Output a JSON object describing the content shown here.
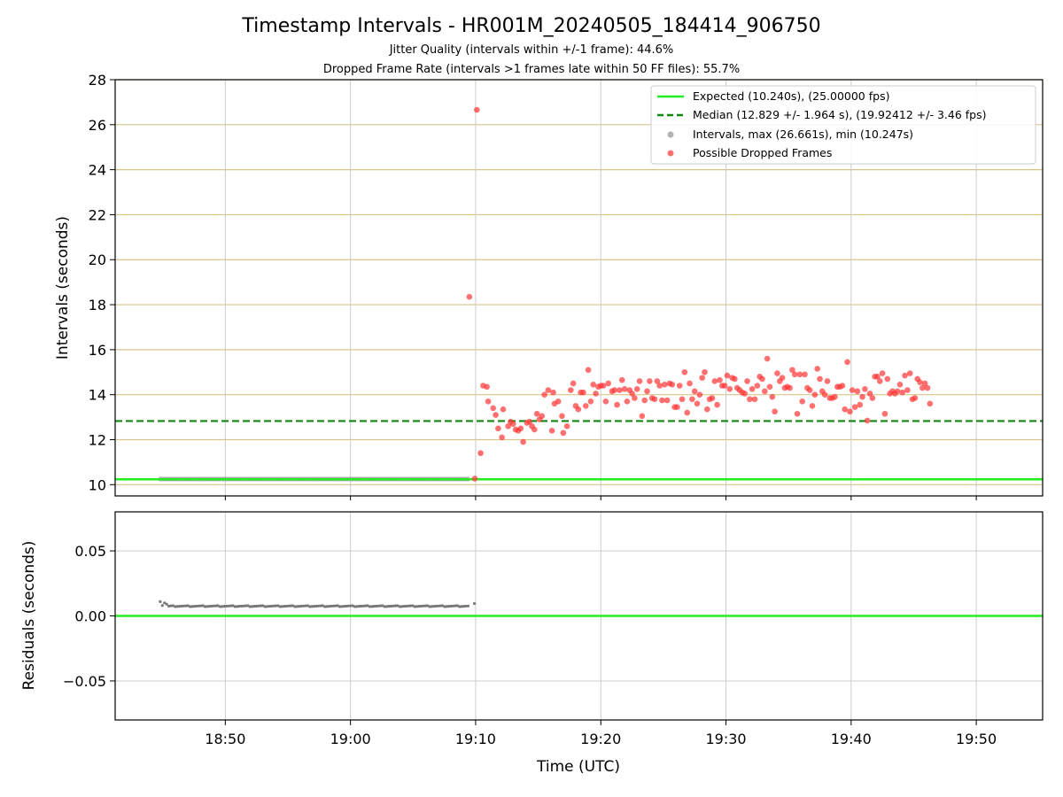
{
  "figure": {
    "title": "Timestamp Intervals - HR001M_20240505_184414_906750",
    "subtitle1": "Jitter Quality (intervals within +/-1 frame): 44.6%",
    "subtitle2": "Dropped Frame Rate (intervals >1 frames late within 50 FF files): 55.7%"
  },
  "chart_data": [
    {
      "type": "scatter",
      "ylabel": "Intervals (seconds)",
      "xlim": [
        "18:41:12",
        "19:55:18"
      ],
      "ylim": [
        9.5,
        28
      ],
      "yticks": [
        10,
        12,
        14,
        16,
        18,
        20,
        22,
        24,
        26,
        28
      ],
      "grid": true,
      "legend_position": "top-right",
      "colors": {
        "expected": "#22ee22",
        "median": "#118811",
        "intervals": "#999999",
        "dropped": "#ff3333",
        "hgrid": "#d8c48a",
        "vgrid": "#cccccc"
      },
      "lines": {
        "expected": {
          "label": "Expected (10.240s), (25.00000 fps)",
          "y": 10.24
        },
        "median": {
          "label": "Median (12.829 +/- 1.964 s), (19.92412 +/- 3.46 fps)",
          "y": 12.829
        }
      },
      "series": [
        {
          "name": "Intervals, max (26.661s), min (10.247s)",
          "y_value": 10.25,
          "x_start": "18:44:48",
          "x_end": "19:09:24",
          "step_seconds": 10.25
        },
        {
          "name": "Possible Dropped Frames",
          "points": [
            [
              "19:09:30",
              18.35
            ],
            [
              "19:09:56",
              10.27
            ],
            [
              "19:10:06",
              26.66
            ],
            [
              "19:10:24",
              11.4
            ],
            [
              "19:10:36",
              14.4
            ],
            [
              "19:10:54",
              14.35
            ],
            [
              "19:11:00",
              13.7
            ],
            [
              "19:11:24",
              13.4
            ],
            [
              "19:11:36",
              13.1
            ],
            [
              "19:11:48",
              12.5
            ],
            [
              "19:12:06",
              12.1
            ],
            [
              "19:12:12",
              13.35
            ],
            [
              "19:12:36",
              12.6
            ],
            [
              "19:12:48",
              12.8
            ],
            [
              "19:13:00",
              12.7
            ],
            [
              "19:13:12",
              12.45
            ],
            [
              "19:13:24",
              12.4
            ],
            [
              "19:13:36",
              12.5
            ],
            [
              "19:13:48",
              11.9
            ],
            [
              "19:14:06",
              12.75
            ],
            [
              "19:14:18",
              12.8
            ],
            [
              "19:14:30",
              12.6
            ],
            [
              "19:14:42",
              12.45
            ],
            [
              "19:14:54",
              13.15
            ],
            [
              "19:15:06",
              12.9
            ],
            [
              "19:15:18",
              13.05
            ],
            [
              "19:15:30",
              14.0
            ],
            [
              "19:15:48",
              14.2
            ],
            [
              "19:16:06",
              12.4
            ],
            [
              "19:16:12",
              14.1
            ],
            [
              "19:16:18",
              13.6
            ],
            [
              "19:16:36",
              13.7
            ],
            [
              "19:16:54",
              13.05
            ],
            [
              "19:17:00",
              12.3
            ],
            [
              "19:17:18",
              12.6
            ],
            [
              "19:17:36",
              14.2
            ],
            [
              "19:17:48",
              14.5
            ],
            [
              "19:18:00",
              13.5
            ],
            [
              "19:18:12",
              13.35
            ],
            [
              "19:18:24",
              14.1
            ],
            [
              "19:18:36",
              14.1
            ],
            [
              "19:18:48",
              13.5
            ],
            [
              "19:19:00",
              15.1
            ],
            [
              "19:19:12",
              13.7
            ],
            [
              "19:19:24",
              14.45
            ],
            [
              "19:19:36",
              14.05
            ],
            [
              "19:19:48",
              14.35
            ],
            [
              "19:20:00",
              14.4
            ],
            [
              "19:20:12",
              14.4
            ],
            [
              "19:20:24",
              13.7
            ],
            [
              "19:20:36",
              14.5
            ],
            [
              "19:20:54",
              14.15
            ],
            [
              "19:21:06",
              14.2
            ],
            [
              "19:21:18",
              13.55
            ],
            [
              "19:21:30",
              14.2
            ],
            [
              "19:21:42",
              14.65
            ],
            [
              "19:21:54",
              14.25
            ],
            [
              "19:22:06",
              13.7
            ],
            [
              "19:22:18",
              14.2
            ],
            [
              "19:22:30",
              14.05
            ],
            [
              "19:22:42",
              13.85
            ],
            [
              "19:22:54",
              14.25
            ],
            [
              "19:23:06",
              14.6
            ],
            [
              "19:23:18",
              13.05
            ],
            [
              "19:23:30",
              13.75
            ],
            [
              "19:23:42",
              14.15
            ],
            [
              "19:23:54",
              14.6
            ],
            [
              "19:24:06",
              13.85
            ],
            [
              "19:24:18",
              13.8
            ],
            [
              "19:24:30",
              14.6
            ],
            [
              "19:24:42",
              14.4
            ],
            [
              "19:24:54",
              13.75
            ],
            [
              "19:25:06",
              14.45
            ],
            [
              "19:25:18",
              13.75
            ],
            [
              "19:25:30",
              14.5
            ],
            [
              "19:25:42",
              14.45
            ],
            [
              "19:25:54",
              13.45
            ],
            [
              "19:26:06",
              13.45
            ],
            [
              "19:26:18",
              14.4
            ],
            [
              "19:26:30",
              13.8
            ],
            [
              "19:26:42",
              15.0
            ],
            [
              "19:26:54",
              13.2
            ],
            [
              "19:27:06",
              14.5
            ],
            [
              "19:27:18",
              13.8
            ],
            [
              "19:27:30",
              14.15
            ],
            [
              "19:27:42",
              13.6
            ],
            [
              "19:27:54",
              14.0
            ],
            [
              "19:28:06",
              14.75
            ],
            [
              "19:28:18",
              15.0
            ],
            [
              "19:28:30",
              13.35
            ],
            [
              "19:28:42",
              13.8
            ],
            [
              "19:28:54",
              13.85
            ],
            [
              "19:29:06",
              14.6
            ],
            [
              "19:29:18",
              13.55
            ],
            [
              "19:29:30",
              14.65
            ],
            [
              "19:29:42",
              14.4
            ],
            [
              "19:29:54",
              14.4
            ],
            [
              "19:30:06",
              14.85
            ],
            [
              "19:30:18",
              14.25
            ],
            [
              "19:30:30",
              14.75
            ],
            [
              "19:30:42",
              14.7
            ],
            [
              "19:30:54",
              14.3
            ],
            [
              "19:31:06",
              14.2
            ],
            [
              "19:31:18",
              14.1
            ],
            [
              "19:31:30",
              14.05
            ],
            [
              "19:31:42",
              14.6
            ],
            [
              "19:31:54",
              13.8
            ],
            [
              "19:32:06",
              14.25
            ],
            [
              "19:32:18",
              13.8
            ],
            [
              "19:32:30",
              14.4
            ],
            [
              "19:32:42",
              14.8
            ],
            [
              "19:32:54",
              14.7
            ],
            [
              "19:33:06",
              14.15
            ],
            [
              "19:33:18",
              15.6
            ],
            [
              "19:33:30",
              14.35
            ],
            [
              "19:33:42",
              13.9
            ],
            [
              "19:33:54",
              13.25
            ],
            [
              "19:34:06",
              14.95
            ],
            [
              "19:34:18",
              14.6
            ],
            [
              "19:34:30",
              14.75
            ],
            [
              "19:34:42",
              14.3
            ],
            [
              "19:34:54",
              14.35
            ],
            [
              "19:35:06",
              14.3
            ],
            [
              "19:35:18",
              15.1
            ],
            [
              "19:35:30",
              14.9
            ],
            [
              "19:35:42",
              13.15
            ],
            [
              "19:35:54",
              14.9
            ],
            [
              "19:36:06",
              13.7
            ],
            [
              "19:36:18",
              14.9
            ],
            [
              "19:36:30",
              14.3
            ],
            [
              "19:36:42",
              14.2
            ],
            [
              "19:36:54",
              13.5
            ],
            [
              "19:37:06",
              14.0
            ],
            [
              "19:37:18",
              15.15
            ],
            [
              "19:37:30",
              14.7
            ],
            [
              "19:37:42",
              14.15
            ],
            [
              "19:37:54",
              14.0
            ],
            [
              "19:38:06",
              14.6
            ],
            [
              "19:38:18",
              13.85
            ],
            [
              "19:38:30",
              13.85
            ],
            [
              "19:38:42",
              13.9
            ],
            [
              "19:38:54",
              14.35
            ],
            [
              "19:39:06",
              14.35
            ],
            [
              "19:39:18",
              14.4
            ],
            [
              "19:39:30",
              13.35
            ],
            [
              "19:39:42",
              15.45
            ],
            [
              "19:39:54",
              13.25
            ],
            [
              "19:40:06",
              14.2
            ],
            [
              "19:40:18",
              13.45
            ],
            [
              "19:40:30",
              14.15
            ],
            [
              "19:40:42",
              13.55
            ],
            [
              "19:40:54",
              13.9
            ],
            [
              "19:41:06",
              14.25
            ],
            [
              "19:41:18",
              12.85
            ],
            [
              "19:41:30",
              14.05
            ],
            [
              "19:41:42",
              13.85
            ],
            [
              "19:41:54",
              14.8
            ],
            [
              "19:42:06",
              14.8
            ],
            [
              "19:42:18",
              14.6
            ],
            [
              "19:42:30",
              14.95
            ],
            [
              "19:42:42",
              13.15
            ],
            [
              "19:42:54",
              14.7
            ],
            [
              "19:43:06",
              14.05
            ],
            [
              "19:43:18",
              14.15
            ],
            [
              "19:43:30",
              14.05
            ],
            [
              "19:43:42",
              14.15
            ],
            [
              "19:43:54",
              14.45
            ],
            [
              "19:44:06",
              14.1
            ],
            [
              "19:44:18",
              14.85
            ],
            [
              "19:44:30",
              14.2
            ],
            [
              "19:44:42",
              14.95
            ],
            [
              "19:44:54",
              13.8
            ],
            [
              "19:45:06",
              13.85
            ],
            [
              "19:45:18",
              14.7
            ],
            [
              "19:45:30",
              14.55
            ],
            [
              "19:45:42",
              14.3
            ],
            [
              "19:45:54",
              14.5
            ],
            [
              "19:46:06",
              14.3
            ],
            [
              "19:46:18",
              13.6
            ]
          ]
        }
      ]
    },
    {
      "type": "scatter",
      "ylabel": "Residuals (seconds)",
      "xlabel": "Time (UTC)",
      "xlim": [
        "18:41:12",
        "19:55:18"
      ],
      "ylim": [
        -0.08,
        0.08
      ],
      "yticks": [
        -0.05,
        0.0,
        0.05
      ],
      "ytick_labels": [
        "−0.05",
        "0.00",
        "0.05"
      ],
      "xticks": [
        "18:50",
        "19:00",
        "19:10",
        "19:20",
        "19:30",
        "19:40",
        "19:50"
      ],
      "grid": true,
      "zero_line_y": 0.0,
      "series": [
        {
          "name": "residuals",
          "x_start": "18:44:48",
          "x_end": "19:09:24",
          "step_seconds": 10.25,
          "typical_value": 0.0075,
          "first_values": [
            0.011,
            0.008,
            0.01,
            0.009,
            0.0075
          ],
          "last_point": [
            "19:09:54",
            0.0095
          ]
        }
      ]
    }
  ]
}
